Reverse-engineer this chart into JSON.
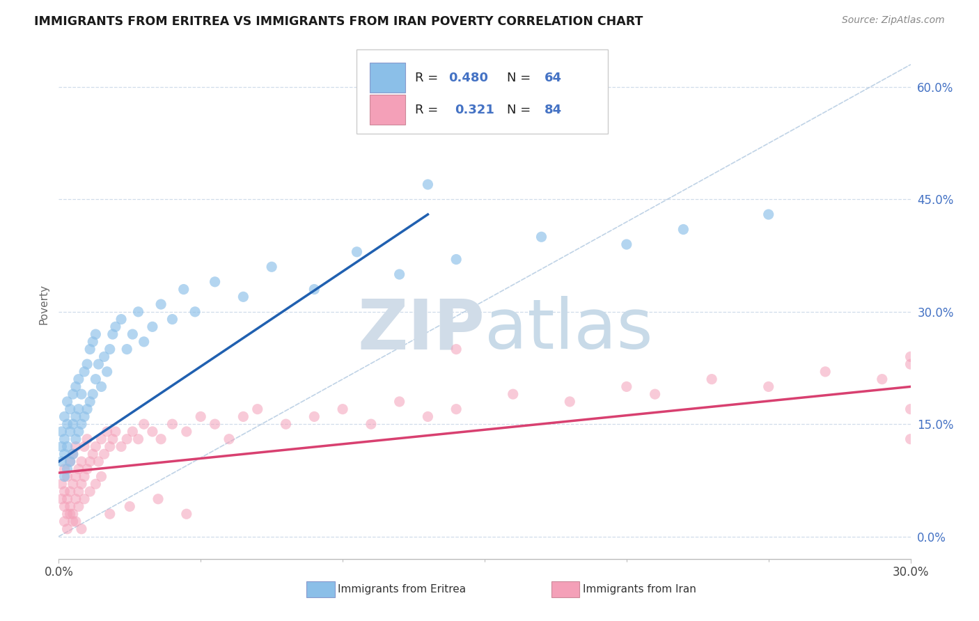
{
  "title": "IMMIGRANTS FROM ERITREA VS IMMIGRANTS FROM IRAN POVERTY CORRELATION CHART",
  "source": "Source: ZipAtlas.com",
  "ylabel": "Poverty",
  "yticks_labels": [
    "0.0%",
    "15.0%",
    "30.0%",
    "45.0%",
    "60.0%"
  ],
  "ytick_vals": [
    0.0,
    0.15,
    0.3,
    0.45,
    0.6
  ],
  "xlim": [
    0.0,
    0.3
  ],
  "ylim": [
    -0.03,
    0.65
  ],
  "color_eritrea": "#8bbfe8",
  "color_iran": "#f4a0b8",
  "color_eritrea_line": "#2060b0",
  "color_iran_line": "#d84070",
  "color_dashed": "#b0c8e0",
  "background_color": "#ffffff",
  "grid_color": "#d0dcea",
  "watermark_color": "#dce8f4",
  "eritrea_x": [
    0.001,
    0.001,
    0.001,
    0.002,
    0.002,
    0.002,
    0.002,
    0.003,
    0.003,
    0.003,
    0.003,
    0.004,
    0.004,
    0.004,
    0.005,
    0.005,
    0.005,
    0.006,
    0.006,
    0.006,
    0.007,
    0.007,
    0.007,
    0.008,
    0.008,
    0.009,
    0.009,
    0.01,
    0.01,
    0.011,
    0.011,
    0.012,
    0.012,
    0.013,
    0.013,
    0.014,
    0.015,
    0.016,
    0.017,
    0.018,
    0.019,
    0.02,
    0.022,
    0.024,
    0.026,
    0.028,
    0.03,
    0.033,
    0.036,
    0.04,
    0.044,
    0.048,
    0.055,
    0.065,
    0.075,
    0.09,
    0.105,
    0.12,
    0.14,
    0.17,
    0.2,
    0.22,
    0.25,
    0.13
  ],
  "eritrea_y": [
    0.1,
    0.12,
    0.14,
    0.08,
    0.11,
    0.13,
    0.16,
    0.09,
    0.12,
    0.15,
    0.18,
    0.1,
    0.14,
    0.17,
    0.11,
    0.15,
    0.19,
    0.13,
    0.16,
    0.2,
    0.14,
    0.17,
    0.21,
    0.15,
    0.19,
    0.16,
    0.22,
    0.17,
    0.23,
    0.18,
    0.25,
    0.19,
    0.26,
    0.21,
    0.27,
    0.23,
    0.2,
    0.24,
    0.22,
    0.25,
    0.27,
    0.28,
    0.29,
    0.25,
    0.27,
    0.3,
    0.26,
    0.28,
    0.31,
    0.29,
    0.33,
    0.3,
    0.34,
    0.32,
    0.36,
    0.33,
    0.38,
    0.35,
    0.37,
    0.4,
    0.39,
    0.41,
    0.43,
    0.47
  ],
  "iran_x": [
    0.001,
    0.001,
    0.002,
    0.002,
    0.002,
    0.003,
    0.003,
    0.003,
    0.004,
    0.004,
    0.004,
    0.005,
    0.005,
    0.005,
    0.006,
    0.006,
    0.006,
    0.007,
    0.007,
    0.008,
    0.008,
    0.009,
    0.009,
    0.01,
    0.01,
    0.011,
    0.012,
    0.013,
    0.014,
    0.015,
    0.016,
    0.017,
    0.018,
    0.019,
    0.02,
    0.022,
    0.024,
    0.026,
    0.028,
    0.03,
    0.033,
    0.036,
    0.04,
    0.045,
    0.05,
    0.055,
    0.06,
    0.065,
    0.07,
    0.08,
    0.09,
    0.1,
    0.11,
    0.12,
    0.13,
    0.14,
    0.16,
    0.18,
    0.2,
    0.21,
    0.23,
    0.25,
    0.27,
    0.29,
    0.3,
    0.3,
    0.3,
    0.3,
    0.005,
    0.003,
    0.004,
    0.006,
    0.007,
    0.008,
    0.002,
    0.009,
    0.011,
    0.013,
    0.015,
    0.018,
    0.025,
    0.035,
    0.045,
    0.14
  ],
  "iran_y": [
    0.05,
    0.07,
    0.04,
    0.06,
    0.09,
    0.03,
    0.05,
    0.08,
    0.04,
    0.06,
    0.1,
    0.03,
    0.07,
    0.11,
    0.05,
    0.08,
    0.12,
    0.06,
    0.09,
    0.07,
    0.1,
    0.08,
    0.12,
    0.09,
    0.13,
    0.1,
    0.11,
    0.12,
    0.1,
    0.13,
    0.11,
    0.14,
    0.12,
    0.13,
    0.14,
    0.12,
    0.13,
    0.14,
    0.13,
    0.15,
    0.14,
    0.13,
    0.15,
    0.14,
    0.16,
    0.15,
    0.13,
    0.16,
    0.17,
    0.15,
    0.16,
    0.17,
    0.15,
    0.18,
    0.16,
    0.17,
    0.19,
    0.18,
    0.2,
    0.19,
    0.21,
    0.2,
    0.22,
    0.21,
    0.23,
    0.17,
    0.13,
    0.24,
    0.02,
    0.01,
    0.03,
    0.02,
    0.04,
    0.01,
    0.02,
    0.05,
    0.06,
    0.07,
    0.08,
    0.03,
    0.04,
    0.05,
    0.03,
    0.25
  ]
}
